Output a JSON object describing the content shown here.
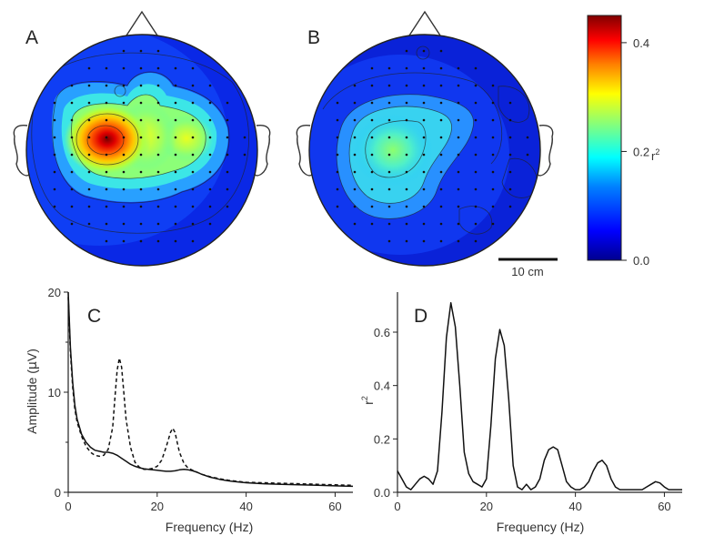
{
  "figure": {
    "panel_labels": [
      "A",
      "B",
      "C",
      "D"
    ]
  },
  "scale_bar": {
    "label": "10 cm"
  },
  "colorbar": {
    "tick_labels": [
      "0.4",
      "0.2",
      "0.0"
    ],
    "ticks": [
      0.4,
      0.2,
      0.0
    ],
    "unit_label": "r",
    "unit_sup": "2",
    "range": [
      0.0,
      0.45
    ],
    "colormap": [
      "#00008f",
      "#0000ff",
      "#0080ff",
      "#00ffff",
      "#80ff80",
      "#ffff00",
      "#ff8000",
      "#ff0000",
      "#800000"
    ]
  },
  "topomaps": [
    {
      "label": "A",
      "hotspots": [
        {
          "where": "left-center",
          "r2": 0.43
        },
        {
          "where": "center",
          "r2": 0.3
        },
        {
          "where": "right-center",
          "r2": 0.26
        }
      ]
    },
    {
      "label": "B",
      "hotspots": [
        {
          "where": "left-center",
          "r2": 0.22
        }
      ]
    }
  ],
  "chart_data": [
    {
      "type": "line",
      "panel": "C",
      "xlabel": "Frequency (Hz)",
      "ylabel_prefix": "Amplitude (",
      "ylabel_mu": "μ",
      "ylabel_suffix": "V)",
      "xlim": [
        0,
        64
      ],
      "ylim": [
        0,
        20
      ],
      "xticks": [
        0,
        20,
        40,
        60
      ],
      "yticks": [
        0,
        10,
        20
      ],
      "series": [
        {
          "style": "solid",
          "x": [
            0,
            0.5,
            1,
            1.5,
            2,
            3,
            4,
            5,
            6,
            7,
            8,
            9,
            10,
            11,
            12,
            13,
            14,
            15,
            16,
            17,
            18,
            19,
            20,
            21,
            22,
            23,
            24,
            25,
            26,
            27,
            28,
            29,
            30,
            32,
            34,
            36,
            38,
            40,
            44,
            48,
            52,
            56,
            60,
            64
          ],
          "y": [
            20,
            14.5,
            11,
            8.7,
            7.3,
            5.8,
            5,
            4.5,
            4.2,
            4.1,
            4.0,
            4.0,
            3.9,
            3.7,
            3.4,
            3.1,
            2.8,
            2.6,
            2.45,
            2.35,
            2.3,
            2.25,
            2.2,
            2.15,
            2.1,
            2.1,
            2.15,
            2.25,
            2.3,
            2.25,
            2.15,
            2.0,
            1.8,
            1.5,
            1.3,
            1.15,
            1.05,
            0.95,
            0.85,
            0.8,
            0.75,
            0.7,
            0.65,
            0.6
          ]
        },
        {
          "style": "dashed",
          "x": [
            0,
            0.5,
            1,
            1.5,
            2,
            3,
            4,
            5,
            6,
            7,
            8,
            9,
            10,
            10.5,
            11,
            11.5,
            12,
            12.5,
            13,
            14,
            15,
            16,
            17,
            18,
            19,
            20,
            21,
            22,
            23,
            23.5,
            24,
            24.5,
            25,
            26,
            27,
            28,
            29,
            30,
            32,
            34,
            36,
            38,
            40,
            44,
            48,
            52,
            56,
            60,
            64
          ],
          "y": [
            19.5,
            14,
            10.5,
            8.3,
            7,
            5.6,
            4.6,
            4.0,
            3.7,
            3.6,
            3.7,
            4.3,
            6.5,
            9.5,
            12.2,
            13.4,
            12.5,
            10,
            7.3,
            4.5,
            3.0,
            2.5,
            2.3,
            2.3,
            2.4,
            2.6,
            3.2,
            4.5,
            6.0,
            6.4,
            6.0,
            5.0,
            4.0,
            2.9,
            2.4,
            2.2,
            2.0,
            1.8,
            1.55,
            1.35,
            1.2,
            1.1,
            1.0,
            0.95,
            0.9,
            0.85,
            0.8,
            0.75,
            0.7
          ]
        }
      ]
    },
    {
      "type": "line",
      "panel": "D",
      "xlabel": "Frequency (Hz)",
      "ylabel": "r",
      "ylabel_sup": "2",
      "xlim": [
        0,
        64
      ],
      "ylim": [
        0,
        0.75
      ],
      "xticks": [
        0,
        20,
        40,
        60
      ],
      "yticks": [
        0.0,
        0.2,
        0.4,
        0.6
      ],
      "ytick_labels": [
        "0.0",
        "0.2",
        "0.4",
        "0.6"
      ],
      "series": [
        {
          "style": "solid",
          "x": [
            0,
            1,
            2,
            3,
            4,
            5,
            6,
            7,
            8,
            9,
            10,
            11,
            12,
            13,
            14,
            15,
            16,
            17,
            18,
            19,
            20,
            21,
            22,
            23,
            24,
            25,
            26,
            27,
            28,
            29,
            30,
            31,
            32,
            33,
            34,
            35,
            36,
            37,
            38,
            39,
            40,
            41,
            42,
            43,
            44,
            45,
            46,
            47,
            48,
            49,
            50,
            51,
            52,
            53,
            54,
            55,
            56,
            57,
            58,
            59,
            60,
            61,
            62,
            63,
            64
          ],
          "y": [
            0.08,
            0.05,
            0.02,
            0.01,
            0.03,
            0.05,
            0.06,
            0.05,
            0.03,
            0.08,
            0.3,
            0.58,
            0.71,
            0.62,
            0.4,
            0.15,
            0.07,
            0.04,
            0.03,
            0.02,
            0.05,
            0.25,
            0.5,
            0.61,
            0.55,
            0.35,
            0.1,
            0.02,
            0.01,
            0.03,
            0.01,
            0.02,
            0.05,
            0.12,
            0.16,
            0.17,
            0.16,
            0.1,
            0.04,
            0.02,
            0.01,
            0.01,
            0.02,
            0.04,
            0.08,
            0.11,
            0.12,
            0.1,
            0.05,
            0.02,
            0.01,
            0.01,
            0.01,
            0.01,
            0.01,
            0.01,
            0.02,
            0.03,
            0.04,
            0.035,
            0.02,
            0.01,
            0.01,
            0.01,
            0.01
          ]
        }
      ]
    }
  ]
}
